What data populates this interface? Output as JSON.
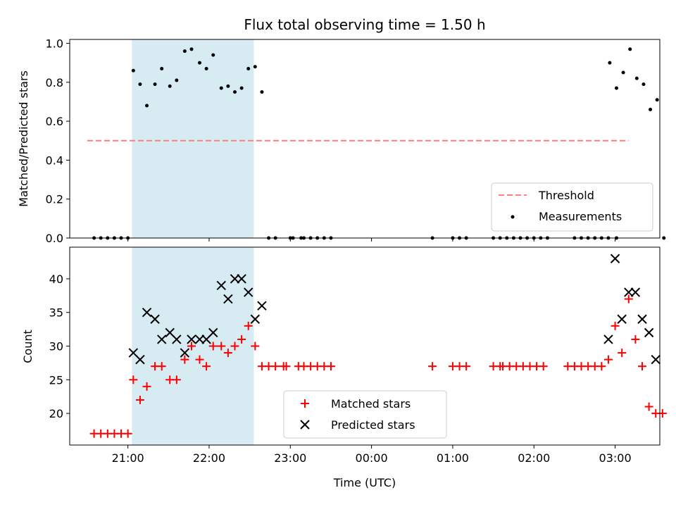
{
  "chart_data": [
    {
      "type": "scatter",
      "title": "Flux total observing time = 1.50 h",
      "xlabel": "",
      "ylabel": "Matched/Predicted stars",
      "ylim": [
        0.0,
        1.02
      ],
      "yticks": [
        "0.0",
        "0.2",
        "0.4",
        "0.6",
        "0.8",
        "1.0"
      ],
      "xlim": [
        "20:17",
        "03:33"
      ],
      "highlight_span": [
        "21:03",
        "22:33"
      ],
      "legend_position": "lower-right",
      "threshold": {
        "name": "Threshold",
        "value": 0.5,
        "x_range": [
          "20:30",
          "03:10"
        ],
        "color": "#ff7f7f"
      },
      "series": [
        {
          "name": "Measurements",
          "color": "#000000",
          "points": [
            [
              "20:35",
              0
            ],
            [
              "20:40",
              0
            ],
            [
              "20:45",
              0
            ],
            [
              "20:50",
              0
            ],
            [
              "20:55",
              0
            ],
            [
              "21:00",
              0
            ],
            [
              "21:04",
              0.86
            ],
            [
              "21:09",
              0.79
            ],
            [
              "21:14",
              0.68
            ],
            [
              "21:20",
              0.79
            ],
            [
              "21:25",
              0.87
            ],
            [
              "21:31",
              0.78
            ],
            [
              "21:36",
              0.81
            ],
            [
              "21:42",
              0.96
            ],
            [
              "21:47",
              0.97
            ],
            [
              "21:53",
              0.9
            ],
            [
              "21:58",
              0.87
            ],
            [
              "22:03",
              0.94
            ],
            [
              "22:09",
              0.77
            ],
            [
              "22:14",
              0.78
            ],
            [
              "22:19",
              0.75
            ],
            [
              "22:24",
              0.77
            ],
            [
              "22:29",
              0.87
            ],
            [
              "22:34",
              0.88
            ],
            [
              "22:39",
              0.75
            ],
            [
              "22:44",
              0
            ],
            [
              "22:49",
              0
            ],
            [
              "23:00",
              0
            ],
            [
              "23:02",
              0
            ],
            [
              "23:08",
              0
            ],
            [
              "23:10",
              0
            ],
            [
              "23:15",
              0
            ],
            [
              "23:20",
              0
            ],
            [
              "23:25",
              0
            ],
            [
              "23:30",
              0
            ],
            [
              "00:45",
              0
            ],
            [
              "01:00",
              0
            ],
            [
              "01:05",
              0
            ],
            [
              "01:10",
              0
            ],
            [
              "01:30",
              0
            ],
            [
              "01:35",
              0
            ],
            [
              "01:40",
              0
            ],
            [
              "01:45",
              0
            ],
            [
              "01:50",
              0
            ],
            [
              "01:55",
              0
            ],
            [
              "02:00",
              0
            ],
            [
              "02:05",
              0
            ],
            [
              "02:10",
              0
            ],
            [
              "02:30",
              0
            ],
            [
              "02:35",
              0
            ],
            [
              "02:40",
              0
            ],
            [
              "02:45",
              0
            ],
            [
              "02:50",
              0
            ],
            [
              "02:55",
              0
            ],
            [
              "03:01",
              0
            ],
            [
              "02:56",
              0.9
            ],
            [
              "03:01",
              0.77
            ],
            [
              "03:06",
              0.85
            ],
            [
              "03:11",
              0.97
            ],
            [
              "03:16",
              0.82
            ],
            [
              "03:21",
              0.79
            ],
            [
              "03:26",
              0.66
            ],
            [
              "03:31",
              0.71
            ],
            [
              "03:36",
              0
            ]
          ]
        }
      ]
    },
    {
      "type": "scatter",
      "xlabel": "Time (UTC)",
      "ylabel": "Count",
      "ylim": [
        15.3,
        44.7
      ],
      "yticks": [
        "20",
        "25",
        "30",
        "35",
        "40"
      ],
      "xticks": [
        "21:00",
        "22:00",
        "23:00",
        "00:00",
        "01:00",
        "02:00",
        "03:00"
      ],
      "xlim": [
        "20:17",
        "03:33"
      ],
      "highlight_span": [
        "21:03",
        "22:33"
      ],
      "legend_position": "lower-center",
      "series": [
        {
          "name": "Matched stars",
          "color": "#ff0000",
          "marker": "+",
          "points": [
            [
              "20:35",
              17
            ],
            [
              "20:40",
              17
            ],
            [
              "20:45",
              17
            ],
            [
              "20:50",
              17
            ],
            [
              "20:55",
              17
            ],
            [
              "21:00",
              17
            ],
            [
              "21:04",
              25
            ],
            [
              "21:09",
              22
            ],
            [
              "21:14",
              24
            ],
            [
              "21:20",
              27
            ],
            [
              "21:25",
              27
            ],
            [
              "21:31",
              25
            ],
            [
              "21:36",
              25
            ],
            [
              "21:42",
              28
            ],
            [
              "21:47",
              30
            ],
            [
              "21:53",
              28
            ],
            [
              "21:58",
              27
            ],
            [
              "22:03",
              30
            ],
            [
              "22:09",
              30
            ],
            [
              "22:14",
              29
            ],
            [
              "22:19",
              30
            ],
            [
              "22:24",
              31
            ],
            [
              "22:29",
              33
            ],
            [
              "22:34",
              30
            ],
            [
              "22:39",
              27
            ],
            [
              "22:44",
              27
            ],
            [
              "22:49",
              27
            ],
            [
              "22:55",
              27
            ],
            [
              "22:57",
              27
            ],
            [
              "23:06",
              27
            ],
            [
              "23:10",
              27
            ],
            [
              "23:15",
              27
            ],
            [
              "23:20",
              27
            ],
            [
              "23:25",
              27
            ],
            [
              "23:30",
              27
            ],
            [
              "00:45",
              27
            ],
            [
              "01:00",
              27
            ],
            [
              "01:05",
              27
            ],
            [
              "01:10",
              27
            ],
            [
              "01:30",
              27
            ],
            [
              "01:35",
              27
            ],
            [
              "01:37",
              27
            ],
            [
              "01:42",
              27
            ],
            [
              "01:47",
              27
            ],
            [
              "01:52",
              27
            ],
            [
              "01:57",
              27
            ],
            [
              "02:02",
              27
            ],
            [
              "02:07",
              27
            ],
            [
              "02:25",
              27
            ],
            [
              "02:30",
              27
            ],
            [
              "02:35",
              27
            ],
            [
              "02:40",
              27
            ],
            [
              "02:45",
              27
            ],
            [
              "02:50",
              27
            ],
            [
              "02:55",
              28
            ],
            [
              "03:00",
              33
            ],
            [
              "03:05",
              29
            ],
            [
              "03:10",
              37
            ],
            [
              "03:15",
              31
            ],
            [
              "03:20",
              27
            ],
            [
              "03:25",
              21
            ],
            [
              "03:30",
              20
            ],
            [
              "03:35",
              20
            ]
          ]
        },
        {
          "name": "Predicted stars",
          "color": "#000000",
          "marker": "x",
          "points": [
            [
              "21:04",
              29
            ],
            [
              "21:09",
              28
            ],
            [
              "21:14",
              35
            ],
            [
              "21:20",
              34
            ],
            [
              "21:25",
              31
            ],
            [
              "21:31",
              32
            ],
            [
              "21:36",
              31
            ],
            [
              "21:42",
              29
            ],
            [
              "21:47",
              31
            ],
            [
              "21:53",
              31
            ],
            [
              "21:58",
              31
            ],
            [
              "22:03",
              32
            ],
            [
              "22:09",
              39
            ],
            [
              "22:14",
              37
            ],
            [
              "22:19",
              40
            ],
            [
              "22:24",
              40
            ],
            [
              "22:29",
              38
            ],
            [
              "22:34",
              34
            ],
            [
              "22:39",
              36
            ],
            [
              "02:55",
              31
            ],
            [
              "03:00",
              43
            ],
            [
              "03:05",
              34
            ],
            [
              "03:10",
              38
            ],
            [
              "03:15",
              38
            ],
            [
              "03:20",
              34
            ],
            [
              "03:25",
              32
            ],
            [
              "03:30",
              28
            ]
          ]
        }
      ]
    }
  ]
}
